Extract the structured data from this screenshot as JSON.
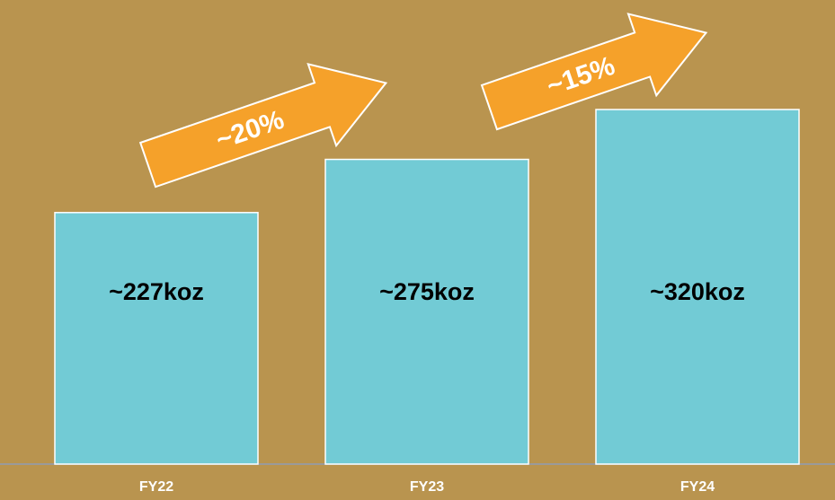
{
  "chart_data": {
    "type": "bar",
    "categories": [
      "FY22",
      "FY23",
      "FY24"
    ],
    "values": [
      227,
      275,
      320
    ],
    "value_labels": [
      "~227koz",
      "~275koz",
      "~320koz"
    ],
    "color": "#72cbd5",
    "annotations": [
      "~20%",
      "~15%"
    ]
  }
}
